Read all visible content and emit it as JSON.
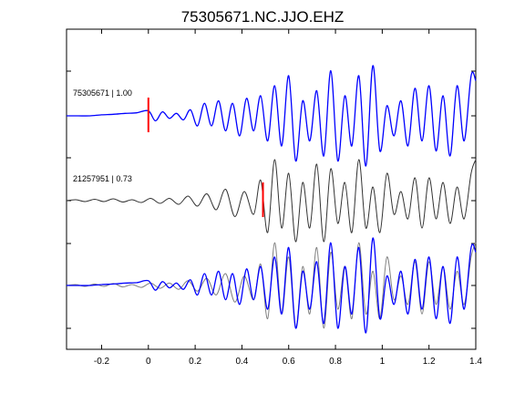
{
  "chart_data": {
    "type": "line",
    "title": "75305671.NC.JJO.EHZ",
    "xlabel": "",
    "ylabel": "",
    "xlim": [
      -0.35,
      1.4
    ],
    "x_ticks": [
      "-0.2",
      "0",
      "0.2",
      "0.4",
      "0.6",
      "0.8",
      "1",
      "1.2",
      "1.4"
    ],
    "x_tick_values": [
      -0.2,
      0,
      0.2,
      0.4,
      0.6,
      0.8,
      1.0,
      1.2,
      1.4
    ],
    "grid": false,
    "traces": [
      {
        "label": "75305671 | 1.00",
        "color": "#0000ff",
        "pick_time": 0.0,
        "pick_color": "#ff0000"
      },
      {
        "label": "21257951 | 0.73",
        "color": "#555555",
        "pick_time": 0.49,
        "pick_color": "#ff0000"
      },
      {
        "label": "",
        "color": "#808080",
        "overlay_color": "#0000ff"
      }
    ],
    "series": [
      {
        "color": "#0000ff",
        "x": [
          -0.35,
          -0.3,
          -0.25,
          -0.2,
          -0.15,
          -0.1,
          -0.05,
          0,
          0.03,
          0.06,
          0.09,
          0.12,
          0.15,
          0.18,
          0.21,
          0.24,
          0.27,
          0.3,
          0.33,
          0.36,
          0.39,
          0.42,
          0.45,
          0.48,
          0.51,
          0.54,
          0.57,
          0.6,
          0.63,
          0.66,
          0.69,
          0.72,
          0.75,
          0.78,
          0.81,
          0.84,
          0.87,
          0.9,
          0.93,
          0.96,
          0.99,
          1.02,
          1.05,
          1.08,
          1.11,
          1.14,
          1.17,
          1.2,
          1.23,
          1.26,
          1.29,
          1.32,
          1.35,
          1.38,
          1.4
        ],
        "y": [
          0,
          0,
          0,
          0.02,
          0.03,
          0.05,
          0.06,
          0.1,
          -0.1,
          0.08,
          -0.05,
          0.05,
          -0.08,
          0.12,
          -0.2,
          0.25,
          -0.2,
          0.3,
          -0.3,
          0.25,
          -0.4,
          0.35,
          -0.3,
          0.4,
          -0.5,
          0.6,
          -0.6,
          0.8,
          -0.9,
          0.3,
          -0.5,
          0.5,
          -0.8,
          0.9,
          -0.9,
          0.4,
          -0.6,
          0.8,
          -1.0,
          1.0,
          -0.7,
          0.2,
          -0.4,
          0.3,
          -0.6,
          0.55,
          -0.5,
          0.6,
          -0.7,
          0.4,
          -0.8,
          0.6,
          -0.5,
          0.8,
          0.7
        ]
      },
      {
        "color": "#333333",
        "x": [
          -0.35,
          -0.31,
          -0.27,
          -0.23,
          -0.19,
          -0.15,
          -0.11,
          -0.07,
          -0.03,
          0.01,
          0.05,
          0.09,
          0.13,
          0.17,
          0.21,
          0.25,
          0.29,
          0.33,
          0.37,
          0.41,
          0.45,
          0.48,
          0.51,
          0.54,
          0.57,
          0.6,
          0.63,
          0.66,
          0.69,
          0.72,
          0.75,
          0.78,
          0.81,
          0.84,
          0.87,
          0.9,
          0.93,
          0.96,
          0.99,
          1.02,
          1.05,
          1.08,
          1.11,
          1.14,
          1.17,
          1.2,
          1.23,
          1.26,
          1.29,
          1.32,
          1.35,
          1.38,
          1.4
        ],
        "y": [
          0,
          0.02,
          -0.02,
          0.03,
          -0.02,
          0.04,
          -0.03,
          0.02,
          -0.04,
          0.05,
          -0.06,
          0.05,
          -0.08,
          0.1,
          -0.12,
          0.15,
          -0.2,
          0.25,
          -0.35,
          0.2,
          -0.3,
          0.45,
          -0.7,
          0.9,
          -0.6,
          0.6,
          -0.9,
          0.4,
          -0.6,
          0.8,
          -0.9,
          0.7,
          -0.5,
          0.4,
          -0.7,
          0.9,
          -0.6,
          0.3,
          -0.7,
          0.6,
          -0.3,
          0.2,
          -0.4,
          0.5,
          -0.6,
          0.5,
          -0.4,
          0.4,
          -0.5,
          0.3,
          -0.4,
          0.6,
          0.9
        ]
      },
      {
        "color": "#808080",
        "x": [
          -0.35,
          -0.31,
          -0.27,
          -0.23,
          -0.19,
          -0.15,
          -0.11,
          -0.07,
          -0.03,
          0.01,
          0.05,
          0.09,
          0.13,
          0.17,
          0.21,
          0.25,
          0.29,
          0.33,
          0.37,
          0.41,
          0.45,
          0.48,
          0.51,
          0.54,
          0.57,
          0.6,
          0.63,
          0.66,
          0.69,
          0.72,
          0.75,
          0.78,
          0.81,
          0.84,
          0.87,
          0.9,
          0.93,
          0.96,
          0.99,
          1.02,
          1.05,
          1.08,
          1.11,
          1.14,
          1.17,
          1.2,
          1.23,
          1.26,
          1.29,
          1.32,
          1.35,
          1.38,
          1.4
        ],
        "y": [
          0,
          0.02,
          -0.02,
          0.03,
          -0.02,
          0.04,
          -0.03,
          0.02,
          -0.04,
          0.05,
          -0.06,
          0.05,
          -0.08,
          0.1,
          -0.12,
          0.15,
          -0.2,
          0.25,
          -0.35,
          0.2,
          -0.3,
          0.45,
          -0.7,
          0.9,
          -0.6,
          0.6,
          -0.9,
          0.4,
          -0.6,
          0.8,
          -0.9,
          0.7,
          -0.5,
          0.4,
          -0.7,
          0.9,
          -0.6,
          0.3,
          -0.7,
          0.6,
          -0.3,
          0.2,
          -0.4,
          0.5,
          -0.6,
          0.5,
          -0.4,
          0.4,
          -0.5,
          0.3,
          -0.4,
          0.6,
          0.9
        ]
      },
      {
        "color": "#0000ff",
        "x": [
          -0.35,
          -0.3,
          -0.25,
          -0.2,
          -0.15,
          -0.1,
          -0.05,
          0,
          0.03,
          0.06,
          0.09,
          0.12,
          0.15,
          0.18,
          0.21,
          0.24,
          0.27,
          0.3,
          0.33,
          0.36,
          0.39,
          0.42,
          0.45,
          0.48,
          0.51,
          0.54,
          0.57,
          0.6,
          0.63,
          0.66,
          0.69,
          0.72,
          0.75,
          0.78,
          0.81,
          0.84,
          0.87,
          0.9,
          0.93,
          0.96,
          0.99,
          1.02,
          1.05,
          1.08,
          1.11,
          1.14,
          1.17,
          1.2,
          1.23,
          1.26,
          1.29,
          1.32,
          1.35,
          1.38,
          1.4
        ],
        "y": [
          0,
          0,
          0,
          0.02,
          0.03,
          0.05,
          0.06,
          0.1,
          -0.1,
          0.08,
          -0.05,
          0.05,
          -0.08,
          0.12,
          -0.2,
          0.25,
          -0.2,
          0.3,
          -0.3,
          0.25,
          -0.4,
          0.35,
          -0.3,
          0.4,
          -0.5,
          0.6,
          -0.6,
          0.8,
          -0.9,
          0.3,
          -0.5,
          0.5,
          -0.8,
          0.9,
          -0.9,
          0.4,
          -0.6,
          0.8,
          -1.0,
          1.0,
          -0.7,
          0.2,
          -0.4,
          0.3,
          -0.6,
          0.55,
          -0.5,
          0.6,
          -0.7,
          0.4,
          -0.8,
          0.6,
          -0.5,
          0.8,
          0.7
        ]
      }
    ]
  }
}
